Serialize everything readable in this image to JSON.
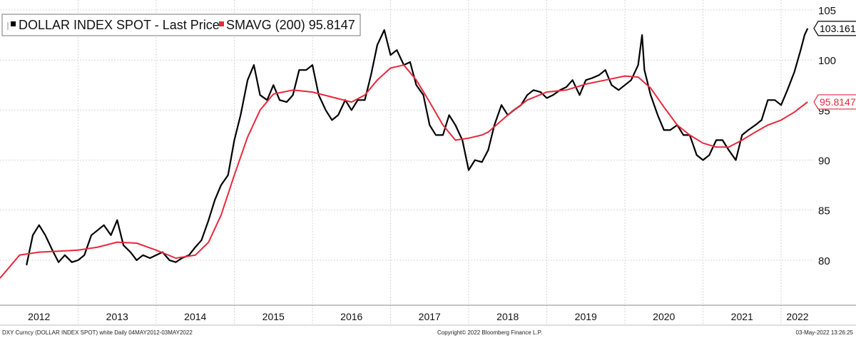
{
  "chart_data": {
    "type": "line",
    "legend": {
      "placement": "top-left",
      "entries": [
        {
          "label": "DOLLAR INDEX SPOT - Last Price",
          "color": "#000000"
        },
        {
          "label": "SMAVG (200) 95.8147",
          "color": "#e8283c"
        }
      ]
    },
    "x_tick_labels": [
      "2012",
      "2013",
      "2014",
      "2015",
      "2016",
      "2017",
      "2018",
      "2019",
      "2020",
      "2021",
      "2022"
    ],
    "y_tick_labels": [
      "105",
      "100",
      "95",
      "90",
      "85",
      "80"
    ],
    "y_ticks": [
      105,
      100,
      95,
      90,
      85,
      80
    ],
    "ylim": [
      75.5,
      106
    ],
    "xlim": [
      2012.0,
      2022.42
    ],
    "grid": true,
    "value_badges": [
      {
        "label": "103.161",
        "value": 103.161,
        "series": "DOLLAR INDEX SPOT - Last Price"
      },
      {
        "label": "95.8147",
        "value": 95.8147,
        "series": "SMAVG (200)"
      }
    ],
    "series": [
      {
        "name": "DOLLAR INDEX SPOT - Last Price",
        "color": "#000000",
        "x": [
          2012.34,
          2012.42,
          2012.5,
          2012.58,
          2012.67,
          2012.75,
          2012.83,
          2012.92,
          2013.0,
          2013.08,
          2013.17,
          2013.25,
          2013.33,
          2013.42,
          2013.5,
          2013.58,
          2013.67,
          2013.75,
          2013.83,
          2013.92,
          2014.0,
          2014.08,
          2014.17,
          2014.25,
          2014.33,
          2014.42,
          2014.5,
          2014.58,
          2014.67,
          2014.75,
          2014.83,
          2014.92,
          2015.0,
          2015.08,
          2015.17,
          2015.25,
          2015.33,
          2015.42,
          2015.5,
          2015.58,
          2015.67,
          2015.75,
          2015.83,
          2015.92,
          2016.0,
          2016.08,
          2016.17,
          2016.25,
          2016.33,
          2016.42,
          2016.5,
          2016.58,
          2016.67,
          2016.75,
          2016.83,
          2016.92,
          2017.0,
          2017.08,
          2017.17,
          2017.25,
          2017.33,
          2017.42,
          2017.5,
          2017.58,
          2017.67,
          2017.75,
          2017.83,
          2017.92,
          2018.0,
          2018.08,
          2018.17,
          2018.25,
          2018.33,
          2018.42,
          2018.5,
          2018.58,
          2018.67,
          2018.75,
          2018.83,
          2018.92,
          2019.0,
          2019.08,
          2019.17,
          2019.25,
          2019.33,
          2019.42,
          2019.5,
          2019.58,
          2019.67,
          2019.75,
          2019.83,
          2019.92,
          2020.0,
          2020.08,
          2020.17,
          2020.22,
          2020.25,
          2020.33,
          2020.42,
          2020.5,
          2020.58,
          2020.67,
          2020.75,
          2020.83,
          2020.92,
          2021.0,
          2021.08,
          2021.17,
          2021.25,
          2021.33,
          2021.42,
          2021.5,
          2021.58,
          2021.67,
          2021.75,
          2021.83,
          2021.92,
          2022.0,
          2022.08,
          2022.17,
          2022.25,
          2022.3,
          2022.34
        ],
        "values": [
          79.5,
          82.5,
          83.5,
          82.5,
          81.0,
          79.8,
          80.5,
          79.8,
          80.0,
          80.5,
          82.5,
          83.0,
          83.5,
          82.5,
          84.0,
          81.5,
          80.8,
          80.0,
          80.5,
          80.2,
          80.5,
          80.8,
          80.0,
          79.8,
          80.2,
          80.5,
          81.3,
          82.0,
          84.0,
          86.0,
          87.5,
          88.5,
          92.0,
          94.5,
          98.0,
          99.5,
          96.5,
          96.0,
          97.5,
          96.0,
          95.8,
          96.5,
          99.0,
          99.0,
          99.5,
          96.5,
          95.0,
          94.0,
          94.5,
          96.0,
          95.0,
          96.0,
          96.0,
          98.5,
          101.5,
          103.0,
          100.5,
          101.0,
          99.5,
          99.8,
          97.5,
          96.5,
          93.5,
          92.5,
          92.5,
          94.5,
          93.5,
          92.0,
          89.0,
          90.0,
          89.8,
          91.0,
          93.5,
          95.5,
          94.5,
          95.0,
          95.5,
          96.5,
          97.0,
          96.8,
          96.2,
          96.5,
          97.0,
          97.3,
          98.0,
          96.5,
          98.0,
          98.2,
          98.5,
          99.0,
          97.5,
          97.0,
          97.5,
          98.0,
          99.5,
          102.5,
          99.0,
          96.5,
          94.5,
          93.0,
          93.0,
          93.5,
          92.5,
          92.5,
          90.5,
          90.0,
          90.5,
          92.0,
          92.0,
          91.0,
          90.0,
          92.5,
          93.0,
          93.5,
          94.0,
          96.0,
          96.0,
          95.5,
          97.0,
          98.8,
          101.0,
          102.5,
          103.161
        ]
      },
      {
        "name": "SMAVG (200)",
        "color": "#e8283c",
        "x": [
          2012.0,
          2012.25,
          2012.5,
          2012.75,
          2013.0,
          2013.25,
          2013.5,
          2013.75,
          2014.0,
          2014.25,
          2014.5,
          2014.67,
          2014.83,
          2015.0,
          2015.17,
          2015.33,
          2015.5,
          2015.75,
          2016.0,
          2016.25,
          2016.5,
          2016.67,
          2016.83,
          2017.0,
          2017.17,
          2017.33,
          2017.5,
          2017.67,
          2017.83,
          2018.0,
          2018.17,
          2018.25,
          2018.5,
          2018.75,
          2019.0,
          2019.25,
          2019.5,
          2019.75,
          2020.0,
          2020.17,
          2020.33,
          2020.5,
          2020.67,
          2020.83,
          2021.0,
          2021.17,
          2021.33,
          2021.5,
          2021.67,
          2021.83,
          2022.0,
          2022.17,
          2022.34
        ],
        "values": [
          78.2,
          80.5,
          80.8,
          80.9,
          81.0,
          81.3,
          81.8,
          81.7,
          81.0,
          80.2,
          80.5,
          81.8,
          84.5,
          88.5,
          92.3,
          95.0,
          96.6,
          97.0,
          96.8,
          96.3,
          95.8,
          96.5,
          98.0,
          99.2,
          99.5,
          98.0,
          95.8,
          93.5,
          92.0,
          92.2,
          92.5,
          92.8,
          94.5,
          96.0,
          96.8,
          97.0,
          97.6,
          98.0,
          98.4,
          98.3,
          97.2,
          95.3,
          93.5,
          92.5,
          91.7,
          91.3,
          91.3,
          92.0,
          92.8,
          93.5,
          94.0,
          94.8,
          95.8147
        ]
      }
    ]
  },
  "footer": {
    "left": "DXY Curncy (DOLLAR INDEX SPOT) white  Daily 04MAY2012-03MAY2022",
    "center": "Copyright© 2022 Bloomberg Finance L.P.",
    "right": "03-May-2022 13:26:25"
  }
}
